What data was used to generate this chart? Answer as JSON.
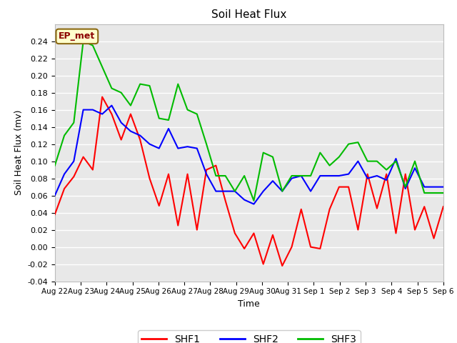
{
  "title": "Soil Heat Flux",
  "xlabel": "Time",
  "ylabel": "Soil Heat Flux (mv)",
  "ylim": [
    -0.04,
    0.26
  ],
  "yticks": [
    -0.04,
    -0.02,
    0.0,
    0.02,
    0.04,
    0.06,
    0.08,
    0.1,
    0.12,
    0.14,
    0.16,
    0.18,
    0.2,
    0.22,
    0.24
  ],
  "xtick_labels": [
    "Aug 22",
    "Aug 23",
    "Aug 24",
    "Aug 25",
    "Aug 26",
    "Aug 27",
    "Aug 28",
    "Aug 29",
    "Aug 30",
    "Aug 31",
    "Sep 1",
    "Sep 2",
    "Sep 3",
    "Sep 4",
    "Sep 5",
    "Sep 6"
  ],
  "annotation_text": "EP_met",
  "colors": {
    "SHF1": "#ff0000",
    "SHF2": "#0000ff",
    "SHF3": "#00bb00",
    "background": "#e8e8e8",
    "grid": "#ffffff",
    "annotation_bg": "#ffffcc",
    "annotation_border": "#8b6914"
  },
  "SHF1": [
    0.038,
    0.068,
    0.082,
    0.105,
    0.09,
    0.175,
    0.155,
    0.125,
    0.155,
    0.125,
    0.08,
    0.048,
    0.085,
    0.025,
    0.085,
    0.02,
    0.09,
    0.095,
    0.054,
    0.016,
    -0.002,
    0.016,
    -0.02,
    0.014,
    -0.022,
    0.0,
    0.044,
    0.0,
    -0.002,
    0.044,
    0.07,
    0.07,
    0.02,
    0.085,
    0.045,
    0.085,
    0.016,
    0.085,
    0.02,
    0.047,
    0.01,
    0.047
  ],
  "SHF2": [
    0.06,
    0.085,
    0.1,
    0.16,
    0.16,
    0.155,
    0.165,
    0.145,
    0.135,
    0.13,
    0.12,
    0.115,
    0.138,
    0.115,
    0.117,
    0.115,
    0.085,
    0.065,
    0.065,
    0.065,
    0.055,
    0.05,
    0.065,
    0.077,
    0.065,
    0.08,
    0.083,
    0.065,
    0.083,
    0.083,
    0.083,
    0.085,
    0.1,
    0.08,
    0.083,
    0.078,
    0.103,
    0.068,
    0.092,
    0.07,
    0.07,
    0.07
  ],
  "SHF3": [
    0.095,
    0.13,
    0.145,
    0.24,
    0.235,
    0.21,
    0.185,
    0.18,
    0.165,
    0.19,
    0.188,
    0.15,
    0.148,
    0.19,
    0.16,
    0.155,
    0.12,
    0.083,
    0.083,
    0.065,
    0.083,
    0.054,
    0.11,
    0.105,
    0.065,
    0.083,
    0.083,
    0.083,
    0.11,
    0.095,
    0.105,
    0.12,
    0.122,
    0.1,
    0.1,
    0.09,
    0.1,
    0.07,
    0.1,
    0.063,
    0.063,
    0.063
  ]
}
